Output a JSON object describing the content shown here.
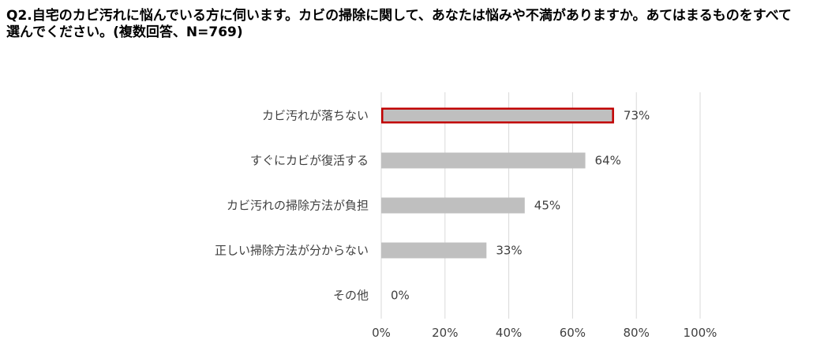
{
  "chart_data": {
    "type": "bar",
    "orientation": "horizontal",
    "title": "Q2.自宅のカビ汚れに悩んでいる方に伺います。カビの掃除に関して、あなたは悩みや不満がありますか。あてはまるものをすべて選んでください。(複数回答、N=769)",
    "categories": [
      "カビ汚れが落ちない",
      "すぐにカビが復活する",
      "カビ汚れの掃除方法が負担",
      "正しい掃除方法が分からない",
      "その他"
    ],
    "values": [
      73,
      64,
      45,
      33,
      0
    ],
    "value_labels": [
      "73%",
      "64%",
      "45%",
      "33%",
      "0%"
    ],
    "xlim": [
      0,
      100
    ],
    "xticks": [
      "0%",
      "20%",
      "40%",
      "60%",
      "80%",
      "100%"
    ],
    "grid": true,
    "highlight_index": 0,
    "colors": {
      "bar": "#bfbfbf",
      "highlight_border": "#c00000",
      "grid": "#d9d9d9",
      "text": "#404040"
    }
  }
}
